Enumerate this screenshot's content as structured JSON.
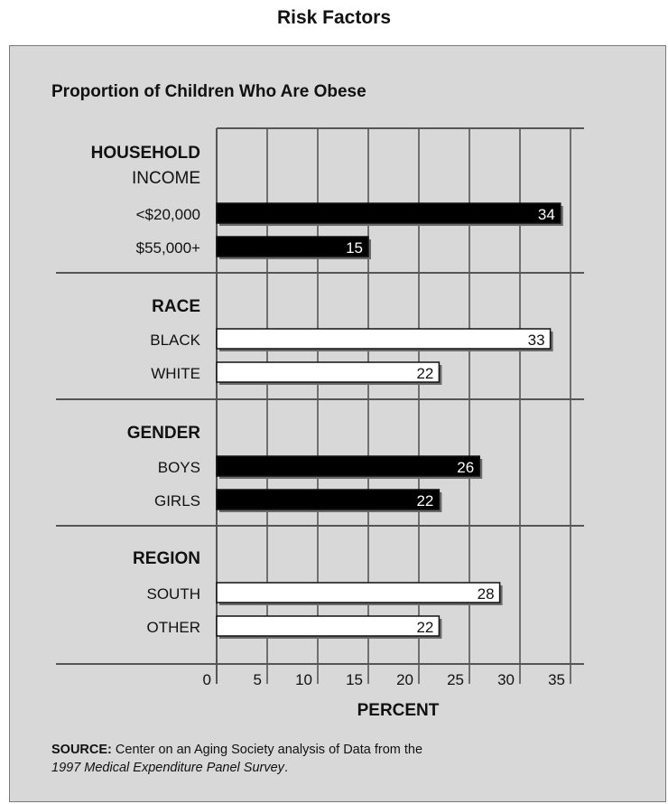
{
  "page_title": "Risk Factors",
  "chart_data": {
    "type": "bar",
    "orientation": "horizontal",
    "title": "Proportion of Children Who Are Obese",
    "xlabel": "PERCENT",
    "xlim": [
      0,
      35
    ],
    "x_ticks": [
      "0",
      "5",
      "10",
      "15",
      "20",
      "25",
      "30",
      "35"
    ],
    "grid": true,
    "groups": [
      {
        "label_lines": [
          "HOUSEHOLD",
          "INCOME"
        ],
        "bar_color": "#000000",
        "items": [
          {
            "label": "<$20,000",
            "value": 34,
            "value_label": "34"
          },
          {
            "label": "$55,000+",
            "value": 15,
            "value_label": "15"
          }
        ]
      },
      {
        "label_lines": [
          "RACE"
        ],
        "bar_color": "#ffffff",
        "items": [
          {
            "label": "BLACK",
            "value": 33,
            "value_label": "33"
          },
          {
            "label": "WHITE",
            "value": 22,
            "value_label": "22"
          }
        ]
      },
      {
        "label_lines": [
          "GENDER"
        ],
        "bar_color": "#000000",
        "items": [
          {
            "label": "BOYS",
            "value": 26,
            "value_label": "26"
          },
          {
            "label": "GIRLS",
            "value": 22,
            "value_label": "22"
          }
        ]
      },
      {
        "label_lines": [
          "REGION"
        ],
        "bar_color": "#ffffff",
        "items": [
          {
            "label": "SOUTH",
            "value": 28,
            "value_label": "28"
          },
          {
            "label": "OTHER",
            "value": 22,
            "value_label": "22"
          }
        ]
      }
    ]
  },
  "source": {
    "label": "SOURCE:",
    "text": " Center on an Aging Society analysis of Data from the",
    "italic": "1997 Medical Expenditure Panel Survey",
    "end": "."
  }
}
